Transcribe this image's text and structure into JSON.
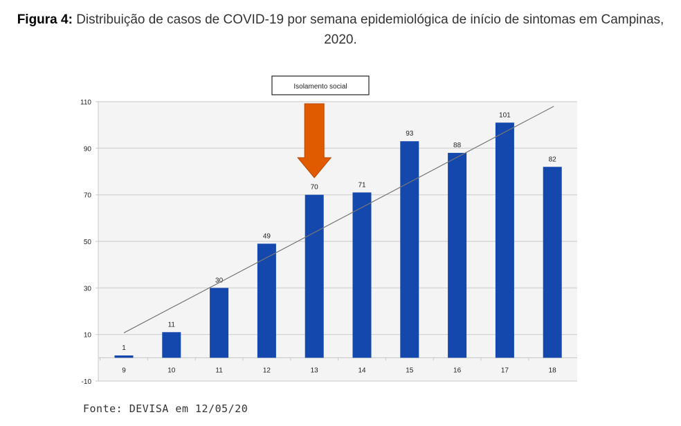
{
  "title_prefix": "Figura 4:",
  "title_text": "Distribuição de casos de COVID-19 por semana epidemiológica de início de sintomas em Campinas, 2020.",
  "source": "Fonte: DEVISA em 12/05/20",
  "chart_data": {
    "type": "bar",
    "title": "Distribuição de casos de COVID-19 por semana epidemiológica de início de sintomas em Campinas, 2020.",
    "xlabel": "",
    "ylabel": "",
    "categories": [
      "9",
      "10",
      "11",
      "12",
      "13",
      "14",
      "15",
      "16",
      "17",
      "18"
    ],
    "values": [
      1,
      11,
      30,
      49,
      70,
      71,
      93,
      88,
      101,
      82
    ],
    "ylim": [
      -10,
      110
    ],
    "yticks": [
      110,
      90,
      70,
      50,
      30,
      10,
      -10
    ],
    "grid": true,
    "bar_color": "#1548ad",
    "trendline": {
      "type": "linear",
      "start": 10.7,
      "end": 108,
      "color": "#777777"
    },
    "annotation": {
      "label": "Isolamento social",
      "category": "13",
      "arrow_color": "#e05a00"
    }
  }
}
